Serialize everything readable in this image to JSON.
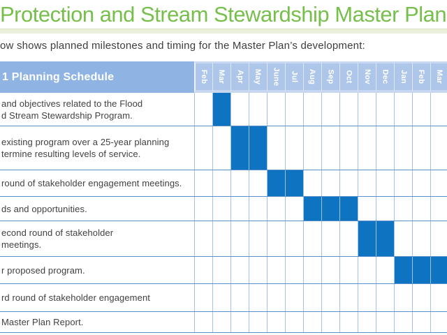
{
  "title": "Protection and Stream Stewardship Master Plan",
  "subtitle": "ow shows planned milestones and timing for the Master Plan’s development:",
  "colors": {
    "title_green": "#76bf4b",
    "divider_band": "#ebf0dc",
    "header_label_bg": "#8fb3e3",
    "month_header_bg": "#aec6ea",
    "fill_blue": "#0e73c0",
    "grid_vertical": "#a3c2e8",
    "row_border": "#5b8fcb",
    "label_text": "#414141"
  },
  "table": {
    "header_label": "1 Planning Schedule",
    "months": [
      "Feb",
      "Mar",
      "Apr",
      "May",
      "June",
      "Jul",
      "Aug",
      "Sep",
      "Oct",
      "Nov",
      "Dec",
      "Jan",
      "Feb",
      "Mar"
    ],
    "rows": [
      {
        "label_lines": [
          "and objectives related to the Flood",
          "d Stream Stewardship Program."
        ],
        "filled": [
          1
        ]
      },
      {
        "label_lines": [
          "existing program over a 25-year planning",
          "termine resulting levels of service."
        ],
        "filled": [
          2,
          3
        ]
      },
      {
        "label_lines": [
          "round of stakeholder engagement meetings."
        ],
        "filled": [
          4,
          5
        ]
      },
      {
        "label_lines": [
          "ds and opportunities."
        ],
        "filled": [
          6,
          7,
          8
        ]
      },
      {
        "label_lines": [
          "econd round of stakeholder",
          "meetings."
        ],
        "filled": [
          9,
          10
        ]
      },
      {
        "label_lines": [
          "r proposed program."
        ],
        "filled": [
          11,
          12,
          13
        ]
      },
      {
        "label_lines": [
          "rd round of stakeholder engagement"
        ],
        "filled": []
      },
      {
        "label_lines": [
          "Master Plan Report."
        ],
        "filled": []
      }
    ]
  },
  "chart_data": {
    "type": "table",
    "title": "1 Planning Schedule",
    "categories": [
      "Feb",
      "Mar",
      "Apr",
      "May",
      "June",
      "Jul",
      "Aug",
      "Sep",
      "Oct",
      "Nov",
      "Dec",
      "Jan",
      "Feb",
      "Mar"
    ],
    "series": [
      {
        "name": "and objectives related to the Flood / d Stream Stewardship Program.",
        "filled_months": [
          "Mar"
        ]
      },
      {
        "name": "existing program over a 25-year planning / termine resulting levels of service.",
        "filled_months": [
          "Apr",
          "May"
        ]
      },
      {
        "name": "round of stakeholder engagement meetings.",
        "filled_months": [
          "June",
          "Jul"
        ]
      },
      {
        "name": "ds and opportunities.",
        "filled_months": [
          "Aug",
          "Sep",
          "Oct"
        ]
      },
      {
        "name": "econd round of stakeholder meetings.",
        "filled_months": [
          "Nov",
          "Dec"
        ]
      },
      {
        "name": "r proposed program.",
        "filled_months": [
          "Jan",
          "Feb",
          "Mar"
        ]
      },
      {
        "name": "rd round of stakeholder engagement",
        "filled_months": []
      },
      {
        "name": "Master Plan Report.",
        "filled_months": []
      }
    ],
    "legend": "none",
    "grid": true
  }
}
